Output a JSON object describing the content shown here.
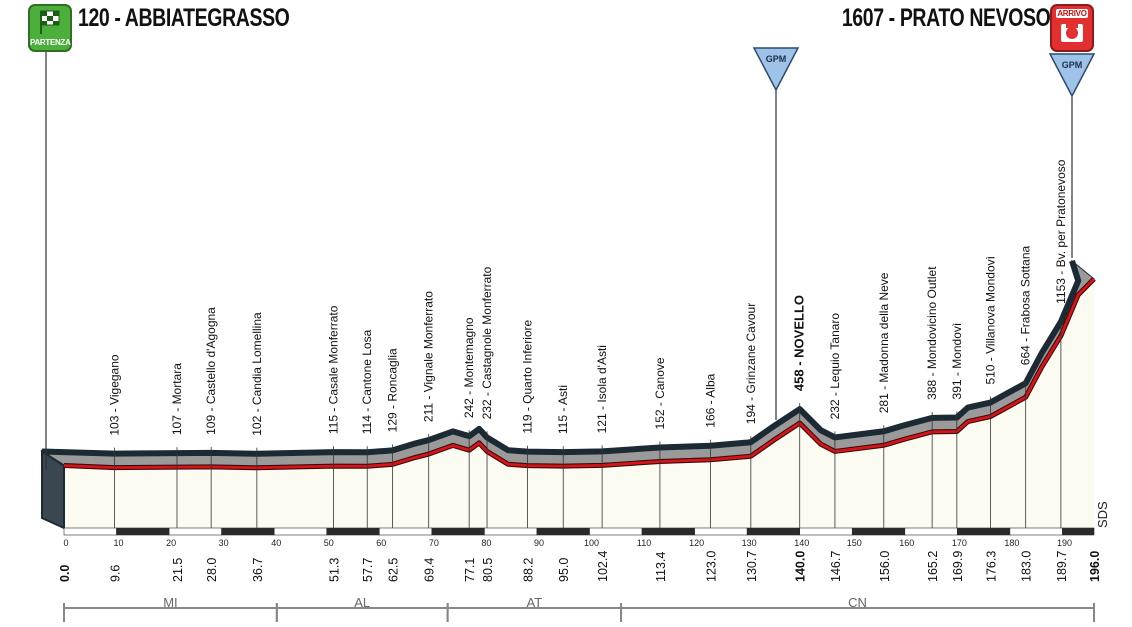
{
  "header": {
    "start": "120 - ABBIATEGRASSO",
    "start_badge": "PARTENZA",
    "finish": "1607 - PRATO NEVOSO",
    "finish_badge": "ARRIVO"
  },
  "colors": {
    "profile_fill": "#9a9a9a",
    "road_red": "#d7141a",
    "outline": "#1c2a33",
    "gpm_blue": "#9fc3e8",
    "km_band": "#2a2a2a",
    "start_green": "#4cae3b",
    "finish_red": "#e23030"
  },
  "chart_data": {
    "type": "area",
    "title": "",
    "x_range": [
      0,
      196
    ],
    "y_range_altitude": [
      0,
      1700
    ],
    "km_ticks": [
      0,
      10,
      20,
      30,
      40,
      50,
      60,
      70,
      80,
      90,
      100,
      110,
      120,
      130,
      140,
      150,
      160,
      170,
      180,
      190
    ],
    "profile": [
      [
        0,
        120
      ],
      [
        9.6,
        103
      ],
      [
        21.5,
        107
      ],
      [
        28.0,
        109
      ],
      [
        36.7,
        102
      ],
      [
        51.3,
        115
      ],
      [
        57.7,
        114
      ],
      [
        62.5,
        129
      ],
      [
        66.5,
        180
      ],
      [
        69.4,
        211
      ],
      [
        74.0,
        280
      ],
      [
        77.1,
        242
      ],
      [
        79.0,
        300
      ],
      [
        80.5,
        232
      ],
      [
        84.5,
        130
      ],
      [
        88.2,
        119
      ],
      [
        95.0,
        115
      ],
      [
        102.4,
        121
      ],
      [
        113.4,
        152
      ],
      [
        123.0,
        166
      ],
      [
        130.7,
        194
      ],
      [
        135.0,
        320
      ],
      [
        140.0,
        458
      ],
      [
        144.0,
        290
      ],
      [
        146.7,
        232
      ],
      [
        156.0,
        281
      ],
      [
        160.0,
        330
      ],
      [
        165.2,
        388
      ],
      [
        169.9,
        391
      ],
      [
        172.0,
        470
      ],
      [
        176.3,
        510
      ],
      [
        183.0,
        664
      ],
      [
        186.0,
        900
      ],
      [
        189.7,
        1153
      ],
      [
        193.0,
        1480
      ],
      [
        196.0,
        1607
      ]
    ],
    "locations": [
      {
        "km": 9.6,
        "label": "103 - Vigegano"
      },
      {
        "km": 21.5,
        "label": "107 - Mortara"
      },
      {
        "km": 28.0,
        "label": "109 - Castello d'Agogna"
      },
      {
        "km": 36.7,
        "label": "102 - Candia Lomellina"
      },
      {
        "km": 51.3,
        "label": "115 - Casale Monferrato"
      },
      {
        "km": 57.7,
        "label": "114 - Cantone Losa"
      },
      {
        "km": 62.5,
        "label": "129 - Roncaglia"
      },
      {
        "km": 69.4,
        "label": "211 - Vignale Monferrato"
      },
      {
        "km": 77.1,
        "label": "242 - Montemagno"
      },
      {
        "km": 80.5,
        "label": "232 - Castagnole Monferrato"
      },
      {
        "km": 88.2,
        "label": "119 - Quarto Inferiore"
      },
      {
        "km": 95.0,
        "label": "115 - Asti"
      },
      {
        "km": 102.4,
        "label": "121 - Isola d'Asti"
      },
      {
        "km": 113.4,
        "label": "152 - Canove"
      },
      {
        "km": 123.0,
        "label": "166 - Alba"
      },
      {
        "km": 130.7,
        "label": "194 - Grinzane Cavour"
      },
      {
        "km": 140.0,
        "label": "458 - NOVELLO",
        "bold": true
      },
      {
        "km": 146.7,
        "label": "232 - Lequio Tanaro"
      },
      {
        "km": 156.0,
        "label": "281 - Madonna della Neve"
      },
      {
        "km": 165.2,
        "label": "388 - Mondovicino Outlet"
      },
      {
        "km": 169.9,
        "label": "391 - Mondovì"
      },
      {
        "km": 176.3,
        "label": "510 - Villanova Mondovì"
      },
      {
        "km": 183.0,
        "label": "664 - Frabosa Sottana"
      },
      {
        "km": 189.7,
        "label": "1153 - Bv. per Pratonevoso"
      }
    ],
    "distances": [
      "0.0",
      "9.6",
      "21.5",
      "28.0",
      "36.7",
      "51.3",
      "57.7",
      "62.5",
      "69.4",
      "77.1",
      "80.5",
      "88.2",
      "95.0",
      "102.4",
      "113.4",
      "123.0",
      "130.7",
      "140.0",
      "146.7",
      "156.0",
      "165.2",
      "169.9",
      "176.3",
      "183.0",
      "189.7",
      "196.0"
    ],
    "bold_distances": [
      "0.0",
      "140.0",
      "196.0"
    ],
    "gpm": [
      {
        "km": 140.0,
        "label": "GPM"
      },
      {
        "km": 196.0,
        "label": "GPM"
      }
    ],
    "provinces": [
      {
        "from": 0,
        "to": 40.5,
        "label": "MI"
      },
      {
        "from": 40.5,
        "to": 73,
        "label": "AL"
      },
      {
        "from": 73,
        "to": 106,
        "label": "AT"
      },
      {
        "from": 106,
        "to": 196,
        "label": "CN"
      }
    ],
    "sds_label": "SDS"
  }
}
